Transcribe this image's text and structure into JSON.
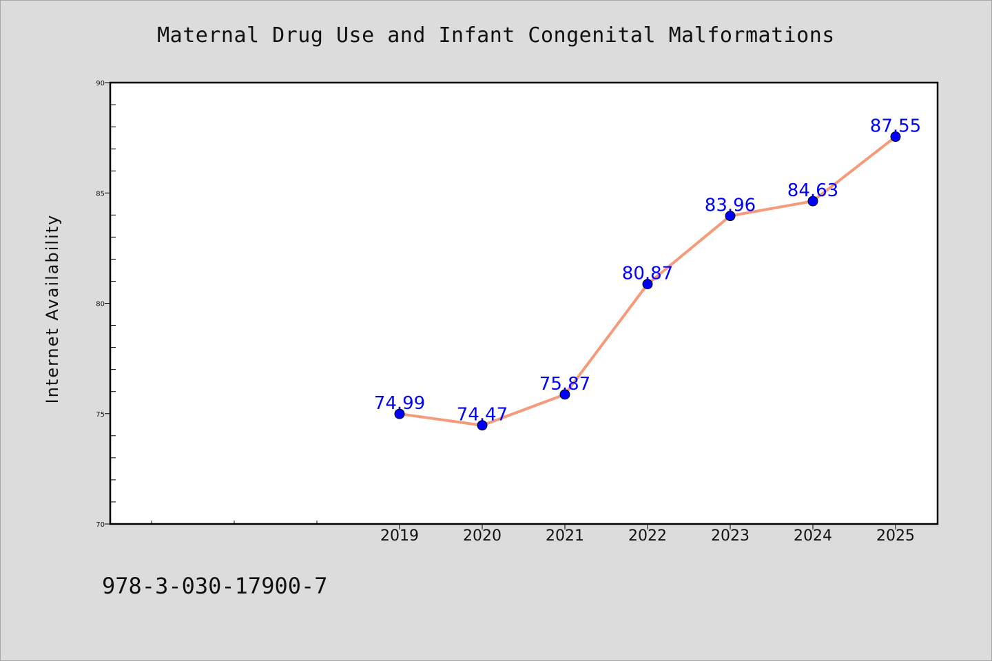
{
  "colors": {
    "background": "#dcdcdc",
    "plot_background": "#ffffff",
    "line": "#f59b7a",
    "marker": "#0000ff",
    "data_label": "#0000ff",
    "text": "#111111"
  },
  "footer": {
    "code": "978-3-030-17900-7"
  },
  "chart_data": {
    "type": "line",
    "title": "Maternal Drug Use and Infant Congenital Malformations",
    "xlabel": "",
    "ylabel": "Internet Availability",
    "categories": [
      "2019",
      "2020",
      "2021",
      "2022",
      "2023",
      "2024",
      "2025"
    ],
    "series": [
      {
        "values": [
          74.99,
          74.47,
          75.87,
          80.87,
          83.96,
          84.63,
          87.55
        ],
        "data_labels": [
          "74.99",
          "74.47",
          "75.87",
          "80.87",
          "83.96",
          "84.63",
          "87.55"
        ]
      }
    ],
    "ylim": [
      70,
      90
    ],
    "yticks": [
      70,
      75,
      80,
      85,
      90
    ],
    "y_minor_step": 1,
    "grid": false,
    "legend": "none"
  }
}
